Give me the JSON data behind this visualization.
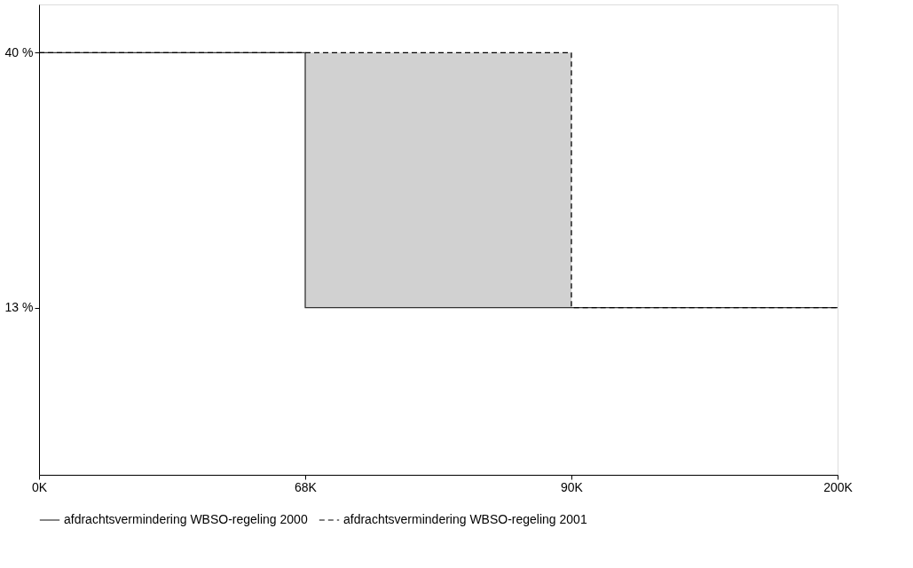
{
  "chart_data": {
    "type": "step",
    "categories": [
      "0K",
      "68K",
      "90K",
      "200K"
    ],
    "series": [
      {
        "name": "afdrachtsvermindering WBSO-regeling 2000",
        "color": "#333333",
        "line_style": "solid",
        "values": [
          40,
          13,
          13,
          13
        ]
      },
      {
        "name": "afdrachtsvermindering WBSO-regeling 2001",
        "color": "#000000",
        "line_style": "dashed",
        "values": [
          40,
          40,
          13,
          13
        ]
      }
    ],
    "ylim": [
      -4.7,
      45.1
    ],
    "yticks": [
      {
        "value": 13,
        "label": "13 %"
      },
      {
        "value": 40,
        "label": "40 %"
      }
    ],
    "grid": false,
    "legend": "bottom",
    "marker": "none"
  }
}
